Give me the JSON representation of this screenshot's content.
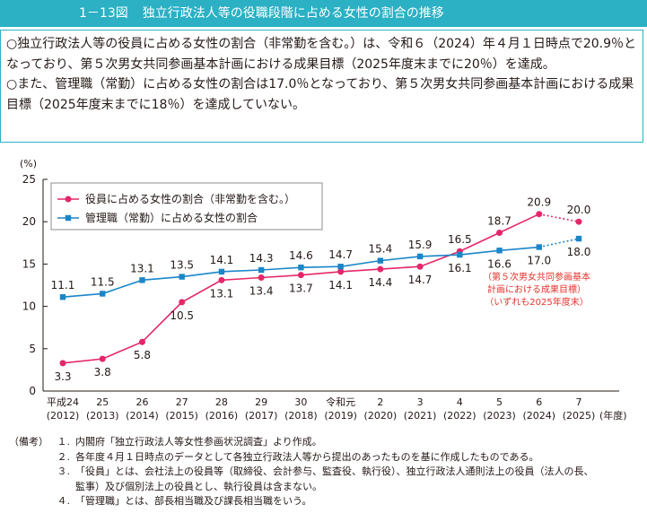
{
  "title": {
    "number": "1－13図",
    "text": "独立行政法人等の役職段階に占める女性の割合の推移"
  },
  "summary": [
    "○独立行政法人等の役員に占める女性の割合（非常勤を含む。）は、令和６（2024）年４月１日時点で20.9％となっており、第５次男女共同参画基本計画における成果目標（2025年度末までに20％）を達成。",
    "○また、管理職（常勤）に占める女性の割合は17.0％となっており、第５次男女共同参画基本計画における成果目標（2025年度末までに18％）を達成していない。"
  ],
  "chart_data": {
    "type": "line",
    "ylabel": "(%)",
    "xlabel": "(年度)",
    "ylim": [
      0,
      25
    ],
    "yticks": [
      0,
      5,
      10,
      15,
      20,
      25
    ],
    "categories": [
      [
        "平成24",
        "(2012)"
      ],
      [
        "25",
        "(2013)"
      ],
      [
        "26",
        "(2014)"
      ],
      [
        "27",
        "(2015)"
      ],
      [
        "28",
        "(2016)"
      ],
      [
        "29",
        "(2017)"
      ],
      [
        "30",
        "(2018)"
      ],
      [
        "令和元",
        "(2019)"
      ],
      [
        "2",
        "(2020)"
      ],
      [
        "3",
        "(2021)"
      ],
      [
        "4",
        "(2022)"
      ],
      [
        "5",
        "(2023)"
      ],
      [
        "6",
        "(2024)"
      ],
      [
        "7",
        "(2025)"
      ]
    ],
    "series": [
      {
        "name": "役員に占める女性の割合（非常勤を含む。）",
        "color": "#e5266a",
        "marker": "circle",
        "values": [
          3.3,
          3.8,
          5.8,
          10.5,
          13.1,
          13.4,
          13.7,
          14.1,
          14.4,
          14.7,
          16.5,
          18.7,
          20.9,
          20.0
        ],
        "labels": [
          "3.3",
          "3.8",
          "5.8",
          "10.5",
          "13.1",
          "13.4",
          "13.7",
          "14.1",
          "14.4",
          "14.7",
          "16.5",
          "18.7",
          "20.9",
          "20.0"
        ],
        "target_index": 13
      },
      {
        "name": "管理職（常勤）に占める女性の割合",
        "color": "#1a86c8",
        "marker": "square",
        "values": [
          11.1,
          11.5,
          13.1,
          13.5,
          14.1,
          14.3,
          14.6,
          14.7,
          15.4,
          15.9,
          16.1,
          16.6,
          17.0,
          18.0
        ],
        "labels": [
          "11.1",
          "11.5",
          "13.1",
          "13.5",
          "14.1",
          "14.3",
          "14.6",
          "14.7",
          "15.4",
          "15.9",
          "16.1",
          "16.6",
          "17.0",
          "18.0"
        ],
        "target_index": 13
      }
    ],
    "annotation": [
      "（第５次男女共同参画基本",
      "計画における成果目標）",
      "（いずれも2025年度末）"
    ],
    "annotation_color": "#e5322d",
    "legend_position": "top-left",
    "grid": false
  },
  "notes": {
    "head": "（備考）",
    "items": [
      {
        "num": "１.",
        "lines": [
          "内閣府「独立行政法人等女性参画状況調査」より作成。"
        ]
      },
      {
        "num": "２.",
        "lines": [
          "各年度４月１日時点のデータとして各独立行政法人等から提出のあったものを基に作成したものである。"
        ]
      },
      {
        "num": "３.",
        "lines": [
          "「役員」とは、会社法上の役員等（取締役、会計参与、監査役、執行役）、独立行政法人通則法上の役員（法人の長、",
          "監事）及び個別法上の役員とし、執行役員は含まない。"
        ]
      },
      {
        "num": "４.",
        "lines": [
          "「管理職」とは、部長相当職及び課長相当職をいう。"
        ]
      }
    ]
  }
}
